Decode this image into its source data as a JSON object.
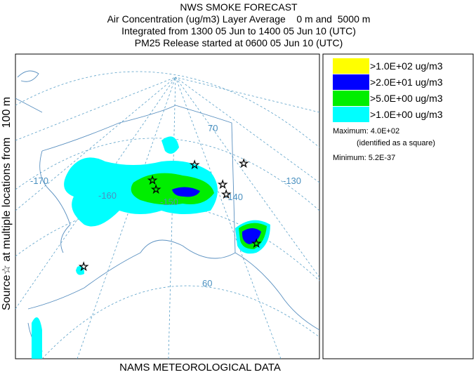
{
  "header": {
    "title": "NWS SMOKE FORECAST",
    "lines": [
      "Air Concentration (ug/m3) Layer Average    0 m and  5000 m",
      "Integrated from 1300 05 Jun to 1400 05 Jun 10 (UTC)",
      "PM25 Release started at 0600 05 Jun 10 (UTC)"
    ]
  },
  "legend": {
    "items": [
      {
        "label": ">1.0E+02 ug/m3",
        "color": "#ffff00"
      },
      {
        "label": ">2.0E+01 ug/m3",
        "color": "#0000ff"
      },
      {
        "label": ">5.0E+00 ug/m3",
        "color": "#00ee00"
      },
      {
        "label": ">1.0E+00 ug/m3",
        "color": "#00ffff"
      }
    ],
    "maximum": "Maximum: 4.0E+02",
    "maximum_note": "(identified as a square)",
    "minimum": "Minimum: 5.2E-37"
  },
  "side_label": "Source☆ at multiple locations from   100 m",
  "footer": "NAMS METEOROLOGICAL DATA",
  "map": {
    "labels": [
      "-170",
      "-160",
      "-150",
      "-140",
      "-130",
      "70",
      "60"
    ]
  }
}
